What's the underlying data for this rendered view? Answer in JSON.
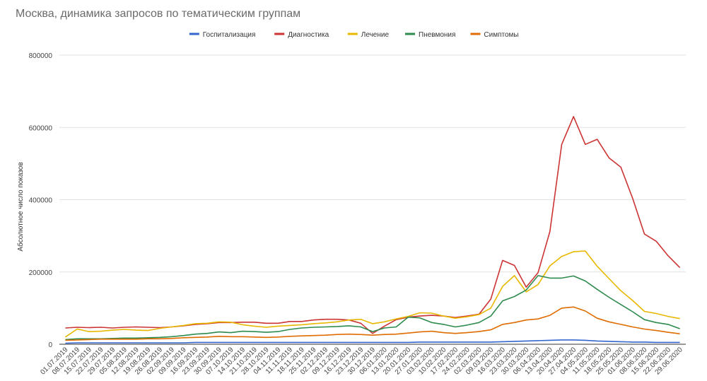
{
  "chart_data": {
    "type": "line",
    "title": "Москва, динамика запросов по тематическим группам",
    "xlabel": "",
    "ylabel": "Абсолютное число показов",
    "ylim": [
      0,
      800000
    ],
    "yticks": [
      {
        "value": 0,
        "label": "0"
      },
      {
        "value": 200000,
        "label": "200000"
      },
      {
        "value": 400000,
        "label": "400000"
      },
      {
        "value": 600000,
        "label": "600000"
      },
      {
        "value": 800000,
        "label": "800000"
      }
    ],
    "legend_position": "top-center",
    "categories": [
      "01.07.2019",
      "08.07.2019",
      "15.07.2019",
      "22.07.2019",
      "29.07.2019",
      "05.08.2019",
      "12.08.2019",
      "19.08.2019",
      "26.08.2019",
      "02.09.2019",
      "09.09.2019",
      "16.09.2019",
      "23.09.2019",
      "30.09.2019",
      "07.10.2019",
      "14.10.2019",
      "21.10.2019",
      "28.10.2019",
      "04.11.2019",
      "11.11.2019",
      "18.11.2019",
      "25.11.2019",
      "02.12.2019",
      "09.12.2019",
      "16.12.2019",
      "23.12.2019",
      "30.12.2019",
      "06.01.2020",
      "13.01.2020",
      "20.01.2020",
      "27.01.2020",
      "03.02.2020",
      "10.02.2020",
      "17.02.2020",
      "24.02.2020",
      "02.03.2020",
      "09.03.2020",
      "16.03.2020",
      "23.03.2020",
      "30.03.2020",
      "06.04.2020",
      "13.04.2020",
      "20.04.2020",
      "27.04.2020",
      "04.05.2020",
      "11.05.2020",
      "18.05.2020",
      "25.05.2020",
      "01.06.2020",
      "08.06.2020",
      "15.06.2020",
      "22.06.2020",
      "29.06.2020"
    ],
    "series": [
      {
        "name": "Госпитализация",
        "color": "#3366cc",
        "values": [
          3000,
          4000,
          4000,
          4000,
          4000,
          4000,
          4000,
          4000,
          4000,
          4000,
          4000,
          5000,
          5000,
          5000,
          5000,
          5000,
          5000,
          5000,
          5000,
          5000,
          5000,
          5000,
          5000,
          5000,
          5000,
          5000,
          5000,
          5000,
          5000,
          5000,
          6000,
          6000,
          6000,
          6000,
          6000,
          6000,
          6000,
          7000,
          8000,
          9000,
          10000,
          11000,
          12000,
          12000,
          11000,
          9000,
          8000,
          7000,
          6000,
          6000,
          5000,
          5000,
          5000
        ]
      },
      {
        "name": "Диагностика",
        "color": "#cc3333",
        "values": [
          45000,
          47000,
          46000,
          47000,
          45000,
          47000,
          48000,
          47000,
          46000,
          48000,
          51000,
          55000,
          57000,
          60000,
          60000,
          61000,
          61000,
          58000,
          58000,
          63000,
          63000,
          67000,
          69000,
          69000,
          67000,
          58000,
          30000,
          50000,
          68000,
          75000,
          78000,
          80000,
          78000,
          74000,
          78000,
          83000,
          125000,
          232000,
          218000,
          158000,
          198000,
          312000,
          553000,
          630000,
          553000,
          567000,
          516000,
          490000,
          404000,
          305000,
          285000,
          245000,
          212000
        ]
      },
      {
        "name": "Лечение",
        "color": "#e8b800",
        "values": [
          20000,
          42000,
          35000,
          36000,
          39000,
          41000,
          39000,
          38000,
          44000,
          48000,
          52000,
          57000,
          58000,
          62000,
          61000,
          54000,
          50000,
          47000,
          50000,
          52000,
          54000,
          57000,
          59000,
          62000,
          67000,
          69000,
          57000,
          62000,
          70000,
          77000,
          87000,
          86000,
          78000,
          72000,
          76000,
          82000,
          100000,
          160000,
          190000,
          145000,
          165000,
          217000,
          243000,
          256000,
          258000,
          216000,
          182000,
          148000,
          121000,
          91000,
          85000,
          77000,
          71000
        ]
      },
      {
        "name": "Пневмония",
        "color": "#2e8b4e",
        "values": [
          13000,
          15000,
          15000,
          15000,
          16000,
          17000,
          17000,
          18000,
          19000,
          21000,
          24000,
          28000,
          30000,
          34000,
          32000,
          36000,
          35000,
          33000,
          35000,
          41000,
          45000,
          47000,
          48000,
          49000,
          51000,
          48000,
          35000,
          45000,
          48000,
          75000,
          73000,
          60000,
          55000,
          48000,
          53000,
          60000,
          78000,
          120000,
          132000,
          150000,
          190000,
          183000,
          183000,
          189000,
          175000,
          152000,
          130000,
          110000,
          90000,
          68000,
          60000,
          55000,
          43000
        ]
      },
      {
        "name": "Симптомы",
        "color": "#e06c00",
        "values": [
          11000,
          12000,
          13000,
          14000,
          14000,
          14000,
          14000,
          15000,
          15000,
          16000,
          18000,
          19000,
          20000,
          22000,
          21000,
          21000,
          20000,
          19000,
          20000,
          22000,
          23000,
          24000,
          25000,
          27000,
          28000,
          27000,
          25000,
          27000,
          28000,
          31000,
          34000,
          36000,
          32000,
          30000,
          32000,
          35000,
          40000,
          55000,
          60000,
          67000,
          70000,
          80000,
          100000,
          103000,
          92000,
          72000,
          62000,
          55000,
          48000,
          42000,
          38000,
          33000,
          29000
        ]
      }
    ]
  }
}
